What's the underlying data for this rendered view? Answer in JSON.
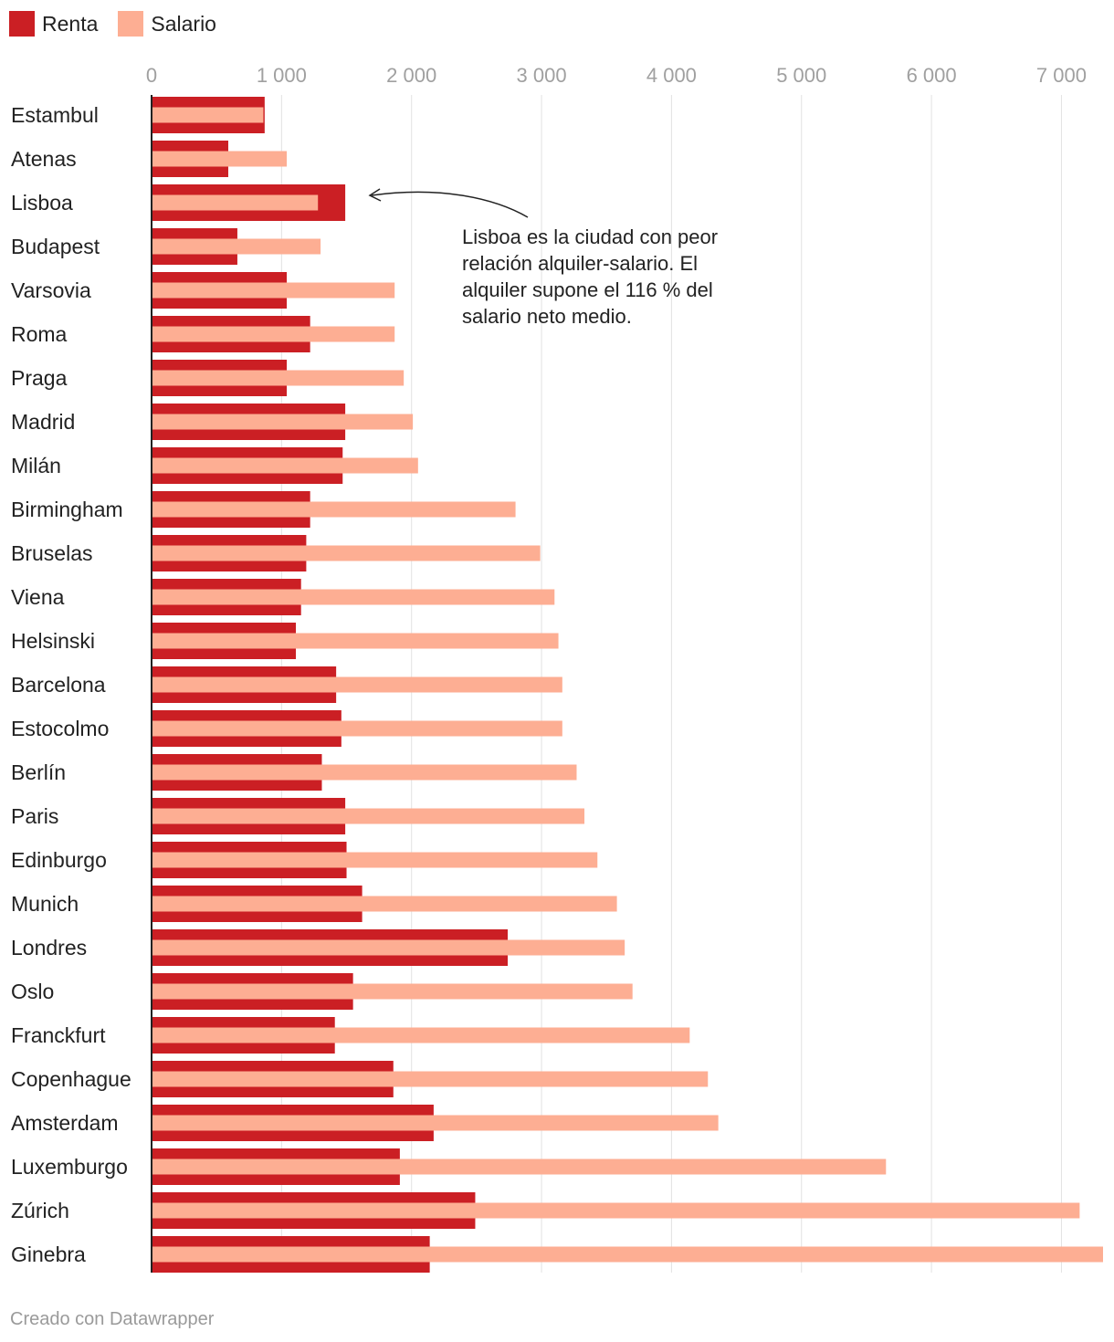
{
  "legend": [
    {
      "label": "Renta",
      "color": "#cb1f24"
    },
    {
      "label": "Salario",
      "color": "#fdae93"
    }
  ],
  "annotation": {
    "text": "Lisboa es la ciudad con peor relación alquiler-salario. El alquiler supone el 116 % del salario neto medio."
  },
  "credit": "Creado con Datawrapper",
  "chart_data": {
    "type": "bar",
    "orientation": "horizontal",
    "categories": [
      "Estambul",
      "Atenas",
      "Lisboa",
      "Budapest",
      "Varsovia",
      "Roma",
      "Praga",
      "Madrid",
      "Milán",
      "Birmingham",
      "Bruselas",
      "Viena",
      "Helsinski",
      "Barcelona",
      "Estocolmo",
      "Berlín",
      "Paris",
      "Edinburgo",
      "Munich",
      "Londres",
      "Oslo",
      "Franckfurt",
      "Copenhague",
      "Amsterdam",
      "Luxemburgo",
      "Zúrich",
      "Ginebra"
    ],
    "series": [
      {
        "name": "Renta",
        "color": "#cb1f24",
        "values": [
          870,
          590,
          1490,
          660,
          1040,
          1220,
          1040,
          1490,
          1470,
          1220,
          1190,
          1150,
          1110,
          1420,
          1460,
          1310,
          1490,
          1500,
          1620,
          2740,
          1550,
          1410,
          1860,
          2170,
          1910,
          2490,
          2140
        ]
      },
      {
        "name": "Salario",
        "color": "#fdae93",
        "values": [
          860,
          1040,
          1280,
          1300,
          1870,
          1870,
          1940,
          2010,
          2050,
          2800,
          2990,
          3100,
          3130,
          3160,
          3160,
          3270,
          3330,
          3430,
          3580,
          3640,
          3700,
          4140,
          4280,
          4360,
          5650,
          7140,
          7320
        ]
      }
    ],
    "ticks": [
      "0",
      "1 000",
      "2 000",
      "3 000",
      "4 000",
      "5 000",
      "6 000",
      "7 000"
    ],
    "tick_values": [
      0,
      1000,
      2000,
      3000,
      4000,
      5000,
      6000,
      7000
    ],
    "xlim": [
      0,
      7320
    ],
    "title": "",
    "xlabel": "",
    "ylabel": ""
  }
}
